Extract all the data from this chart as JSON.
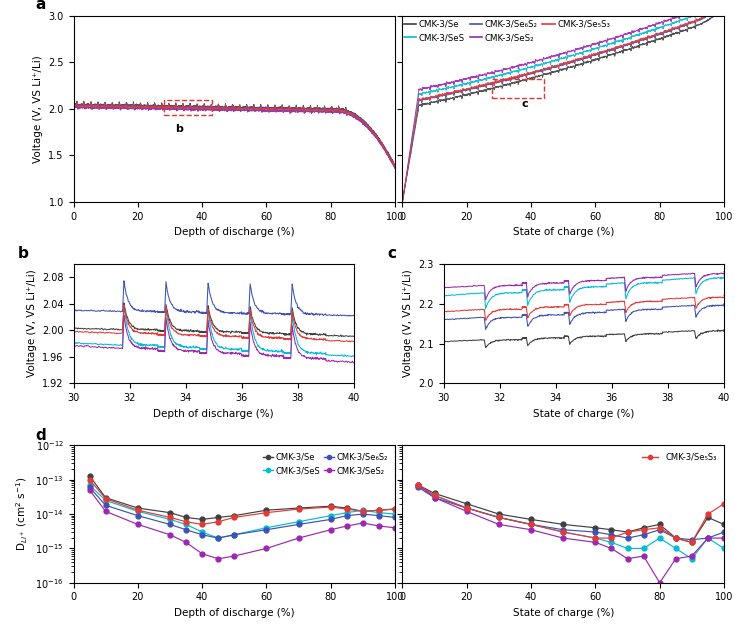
{
  "colors": {
    "Se": "#404040",
    "SeS": "#00bcd4",
    "Se6S2": "#3f51b5",
    "SeS2": "#9c27b0",
    "Se5S3": "#e53935"
  },
  "legend_labels": {
    "Se": "CMK-3/Se",
    "SeS": "CMK-3/SeS",
    "Se6S2": "CMK-3/Se₆S₂",
    "SeS2": "CMK-3/SeS₂",
    "Se5S3": "CMK-3/Se₅S₃"
  },
  "panel_a": {
    "xlabel_discharge": "Depth of discharge (%)",
    "xlabel_charge": "State of charge (%)",
    "ylabel": "Voltage (V, VS Li⁺/Li)",
    "ylim": [
      1.0,
      3.0
    ],
    "yticks": [
      1.0,
      1.5,
      2.0,
      2.5,
      3.0
    ]
  },
  "panel_b": {
    "xlabel": "Depth of discharge (%)",
    "ylabel": "Voltage (V, VS Li⁺/Li)",
    "xlim": [
      30,
      40
    ],
    "ylim": [
      1.92,
      2.1
    ],
    "yticks": [
      1.92,
      1.96,
      2.0,
      2.04,
      2.08
    ]
  },
  "panel_c": {
    "xlabel": "State of charge (%)",
    "ylabel": "Voltage (V, VS Li⁺/Li)",
    "xlim": [
      30,
      40
    ],
    "ylim": [
      2.0,
      2.3
    ],
    "yticks": [
      2.0,
      2.1,
      2.2,
      2.3
    ]
  },
  "panel_d": {
    "xlabel_discharge": "Depth of discharge (%)",
    "xlabel_charge": "State of charge (%)",
    "ylabel": "D$_{Li^+}$ (cm$^2$ s$^{-1}$)",
    "ylim": [
      1e-16,
      1e-12
    ]
  }
}
